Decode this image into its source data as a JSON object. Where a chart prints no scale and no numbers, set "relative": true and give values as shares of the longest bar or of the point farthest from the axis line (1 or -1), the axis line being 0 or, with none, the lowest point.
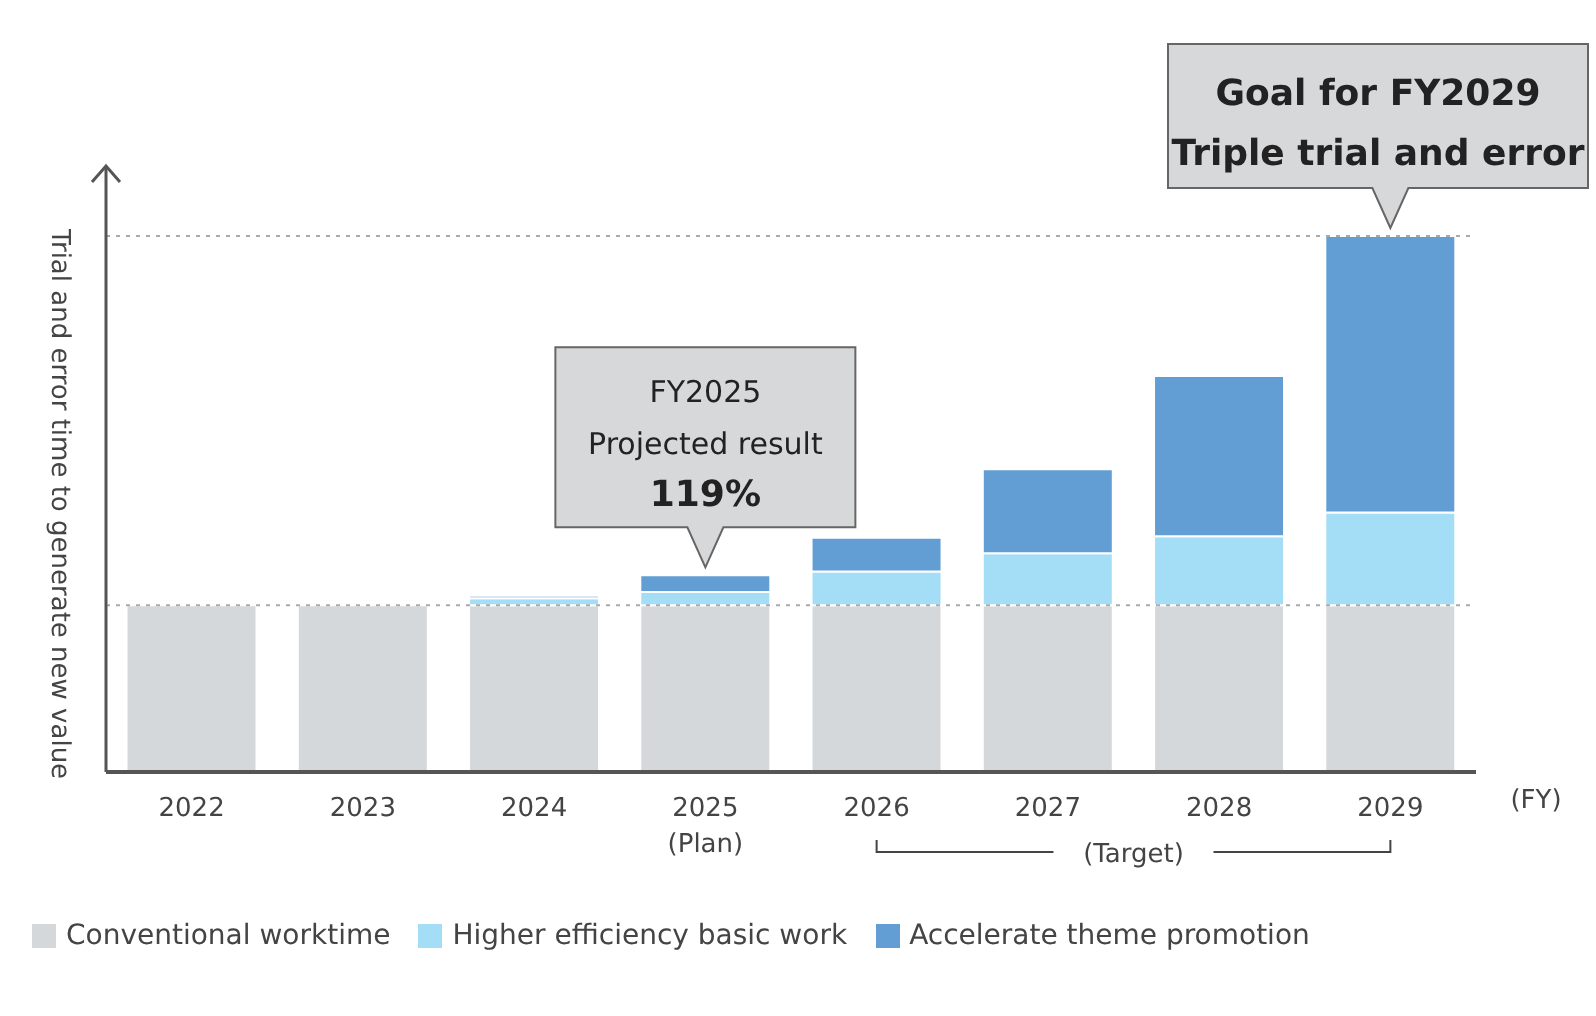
{
  "chart_data": {
    "type": "bar",
    "stacked": true,
    "relative": true,
    "categories": [
      "2022",
      "2023",
      "2024",
      "2025\n(Plan)",
      "2026",
      "2027",
      "2028",
      "2029"
    ],
    "xlabel": "(FY)",
    "ylabel": "Trial and error time to generate new value",
    "series": [
      {
        "name": "Conventional worktime",
        "color": "#d5d8da",
        "values": [
          0.311,
          0.311,
          0.311,
          0.311,
          0.311,
          0.311,
          0.311,
          0.311
        ]
      },
      {
        "name": "Higher efficiency basic work",
        "color": "#a4ddf6",
        "values": [
          0,
          0,
          0.013,
          0.025,
          0.063,
          0.097,
          0.129,
          0.173
        ]
      },
      {
        "name": "Accelerate theme promotion",
        "color": "#629ed4",
        "values": [
          0,
          0,
          0.005,
          0.031,
          0.063,
          0.157,
          0.299,
          0.516
        ]
      }
    ],
    "ref_lines": [
      {
        "axis": "y",
        "value": 0.311,
        "color": "#aaaaaa",
        "line_style": "dotted"
      },
      {
        "axis": "y",
        "value": 1,
        "color": "#aaaaaa",
        "line_style": "dotted"
      }
    ],
    "annotations": [
      {
        "text": "FY2025\nProjected result\n119%",
        "x": "2025\n(Plan)",
        "y": 0.367
      },
      {
        "text": "Goal for FY2029\nTriple trial and error",
        "x": "2029",
        "y": 1
      },
      "(Target)"
    ],
    "legend": "bottom left"
  }
}
